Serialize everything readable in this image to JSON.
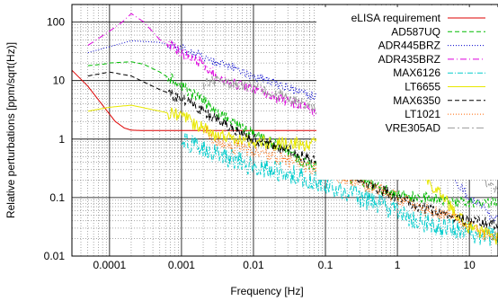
{
  "chart_data": {
    "type": "line",
    "xlabel": "Frequency [Hz]",
    "ylabel": "Relative perturbations [ppm/sqrt(Hz)]",
    "xscale": "log",
    "yscale": "log",
    "xlim": [
      3e-05,
      25
    ],
    "ylim": [
      0.01,
      200
    ],
    "grid": true,
    "legend": "top-right",
    "x_ticks": [
      {
        "value": 0.0001,
        "label": "0.0001"
      },
      {
        "value": 0.001,
        "label": "0.001"
      },
      {
        "value": 0.01,
        "label": "0.01"
      },
      {
        "value": 0.1,
        "label": "0.1"
      },
      {
        "value": 1,
        "label": "1"
      },
      {
        "value": 10,
        "label": "10"
      }
    ],
    "y_ticks": [
      {
        "value": 0.01,
        "label": "0.01"
      },
      {
        "value": 0.1,
        "label": "0.1"
      },
      {
        "value": 1,
        "label": "1"
      },
      {
        "value": 10,
        "label": "10"
      },
      {
        "value": 100,
        "label": "100"
      }
    ],
    "series": [
      {
        "name": "eLISA requirement",
        "color": "#dd0000",
        "dash": "",
        "noise": 0,
        "x": [
          3e-05,
          5e-05,
          8e-05,
          0.00012,
          0.00016,
          0.0002,
          0.0003,
          0.001,
          0.01,
          0.1,
          1,
          10,
          25
        ],
        "y": [
          15,
          8,
          3.8,
          2.0,
          1.55,
          1.42,
          1.4,
          1.4,
          1.4,
          1.4,
          1.4,
          1.4,
          1.4
        ]
      },
      {
        "name": "AD587UQ",
        "color": "#00bb00",
        "dash": "5,3",
        "noise": 0.1,
        "x": [
          5e-05,
          8e-05,
          0.0001,
          0.0002,
          0.0003,
          0.0005,
          0.001,
          0.002,
          0.003,
          0.005,
          0.01,
          0.02,
          0.05,
          0.1,
          0.2,
          0.5,
          1,
          2,
          5,
          10,
          25
        ],
        "y": [
          18,
          19,
          20,
          21,
          19,
          14,
          8,
          4.5,
          3,
          2,
          1.2,
          0.8,
          0.4,
          0.32,
          0.22,
          0.16,
          0.11,
          0.1,
          0.09,
          0.085,
          0.08
        ]
      },
      {
        "name": "ADR445BRZ",
        "color": "#0000cc",
        "dash": "1,2",
        "noise": 0.08,
        "x": [
          5e-05,
          0.0001,
          0.0002,
          0.0005,
          0.001,
          0.002,
          0.003,
          0.005,
          0.01,
          0.02,
          0.05,
          0.1,
          0.2,
          0.5,
          1,
          2,
          5,
          10,
          25
        ],
        "y": [
          30,
          38,
          48,
          45,
          35,
          25,
          20,
          17,
          12,
          9,
          6,
          5,
          4.5,
          3.5,
          2.8,
          1.2,
          0.3,
          0.1,
          0.04
        ]
      },
      {
        "name": "ADR435BRZ",
        "color": "#dd00dd",
        "dash": "7,3,1,3",
        "noise": 0.1,
        "x": [
          5e-05,
          0.0001,
          0.00015,
          0.0002,
          0.0003,
          0.0005,
          0.001,
          0.002,
          0.003,
          0.005,
          0.01,
          0.02,
          0.05,
          0.1,
          0.2,
          0.5,
          1,
          2,
          5,
          10,
          25
        ],
        "y": [
          40,
          70,
          100,
          140,
          100,
          50,
          30,
          20,
          12,
          9,
          7,
          5,
          3.5,
          2.5,
          1.8,
          1.0,
          0.7,
          0.5,
          0.35,
          0.3,
          0.25
        ]
      },
      {
        "name": "MAX6126",
        "color": "#00cccc",
        "dash": "6,2,1,2",
        "noise": 0.18,
        "x": [
          0.001,
          0.002,
          0.003,
          0.005,
          0.01,
          0.02,
          0.05,
          0.1,
          0.2,
          0.5,
          1,
          2,
          5,
          10,
          25
        ],
        "y": [
          0.9,
          0.7,
          0.55,
          0.45,
          0.35,
          0.3,
          0.22,
          0.18,
          0.12,
          0.08,
          0.06,
          0.04,
          0.03,
          0.025,
          0.02
        ]
      },
      {
        "name": "LT6655",
        "color": "#e8e800",
        "dash": "",
        "noise": 0.12,
        "x": [
          5e-05,
          0.0001,
          0.0002,
          0.0005,
          0.001,
          0.002,
          0.003,
          0.005,
          0.01,
          0.02,
          0.05,
          0.1,
          0.2,
          0.5,
          1,
          2,
          5,
          10,
          25
        ],
        "y": [
          3,
          3.5,
          3.8,
          3,
          2.5,
          1.5,
          1.2,
          1.05,
          0.9,
          0.85,
          0.8,
          0.8,
          0.8,
          0.75,
          0.7,
          0.3,
          0.08,
          0.03,
          0.02
        ]
      },
      {
        "name": "MAX6350",
        "color": "#000000",
        "dash": "5,3",
        "noise": 0.1,
        "x": [
          5e-05,
          0.0001,
          0.0002,
          0.0005,
          0.001,
          0.002,
          0.003,
          0.005,
          0.01,
          0.02,
          0.05,
          0.1,
          0.2,
          0.5,
          1,
          2,
          5,
          10,
          25
        ],
        "y": [
          12,
          14,
          12,
          7,
          5,
          3,
          2.2,
          1.5,
          1.0,
          0.75,
          0.5,
          0.35,
          0.25,
          0.15,
          0.1,
          0.07,
          0.05,
          0.04,
          0.035
        ]
      },
      {
        "name": "LT1021",
        "color": "#ff6600",
        "dash": "1,2",
        "noise": 0.12,
        "x": [
          0.002,
          0.003,
          0.005,
          0.01,
          0.02,
          0.05,
          0.1,
          0.2,
          0.5,
          1,
          2,
          5,
          10,
          25
        ],
        "y": [
          1.5,
          1.0,
          0.75,
          0.6,
          0.5,
          0.35,
          0.28,
          0.2,
          0.15,
          0.1,
          0.07,
          0.05,
          0.03,
          0.02
        ]
      },
      {
        "name": "VRE305AD",
        "color": "#999999",
        "dash": "8,3,2,3",
        "noise": 0.1,
        "x": [
          0.002,
          0.003,
          0.005,
          0.01,
          0.02,
          0.05,
          0.1,
          0.2,
          0.5,
          1,
          2,
          5,
          10,
          25
        ],
        "y": [
          9,
          10,
          9,
          8,
          6,
          4,
          3,
          2.2,
          1.6,
          1.2,
          0.9,
          0.6,
          0.35,
          0.12
        ]
      }
    ]
  }
}
